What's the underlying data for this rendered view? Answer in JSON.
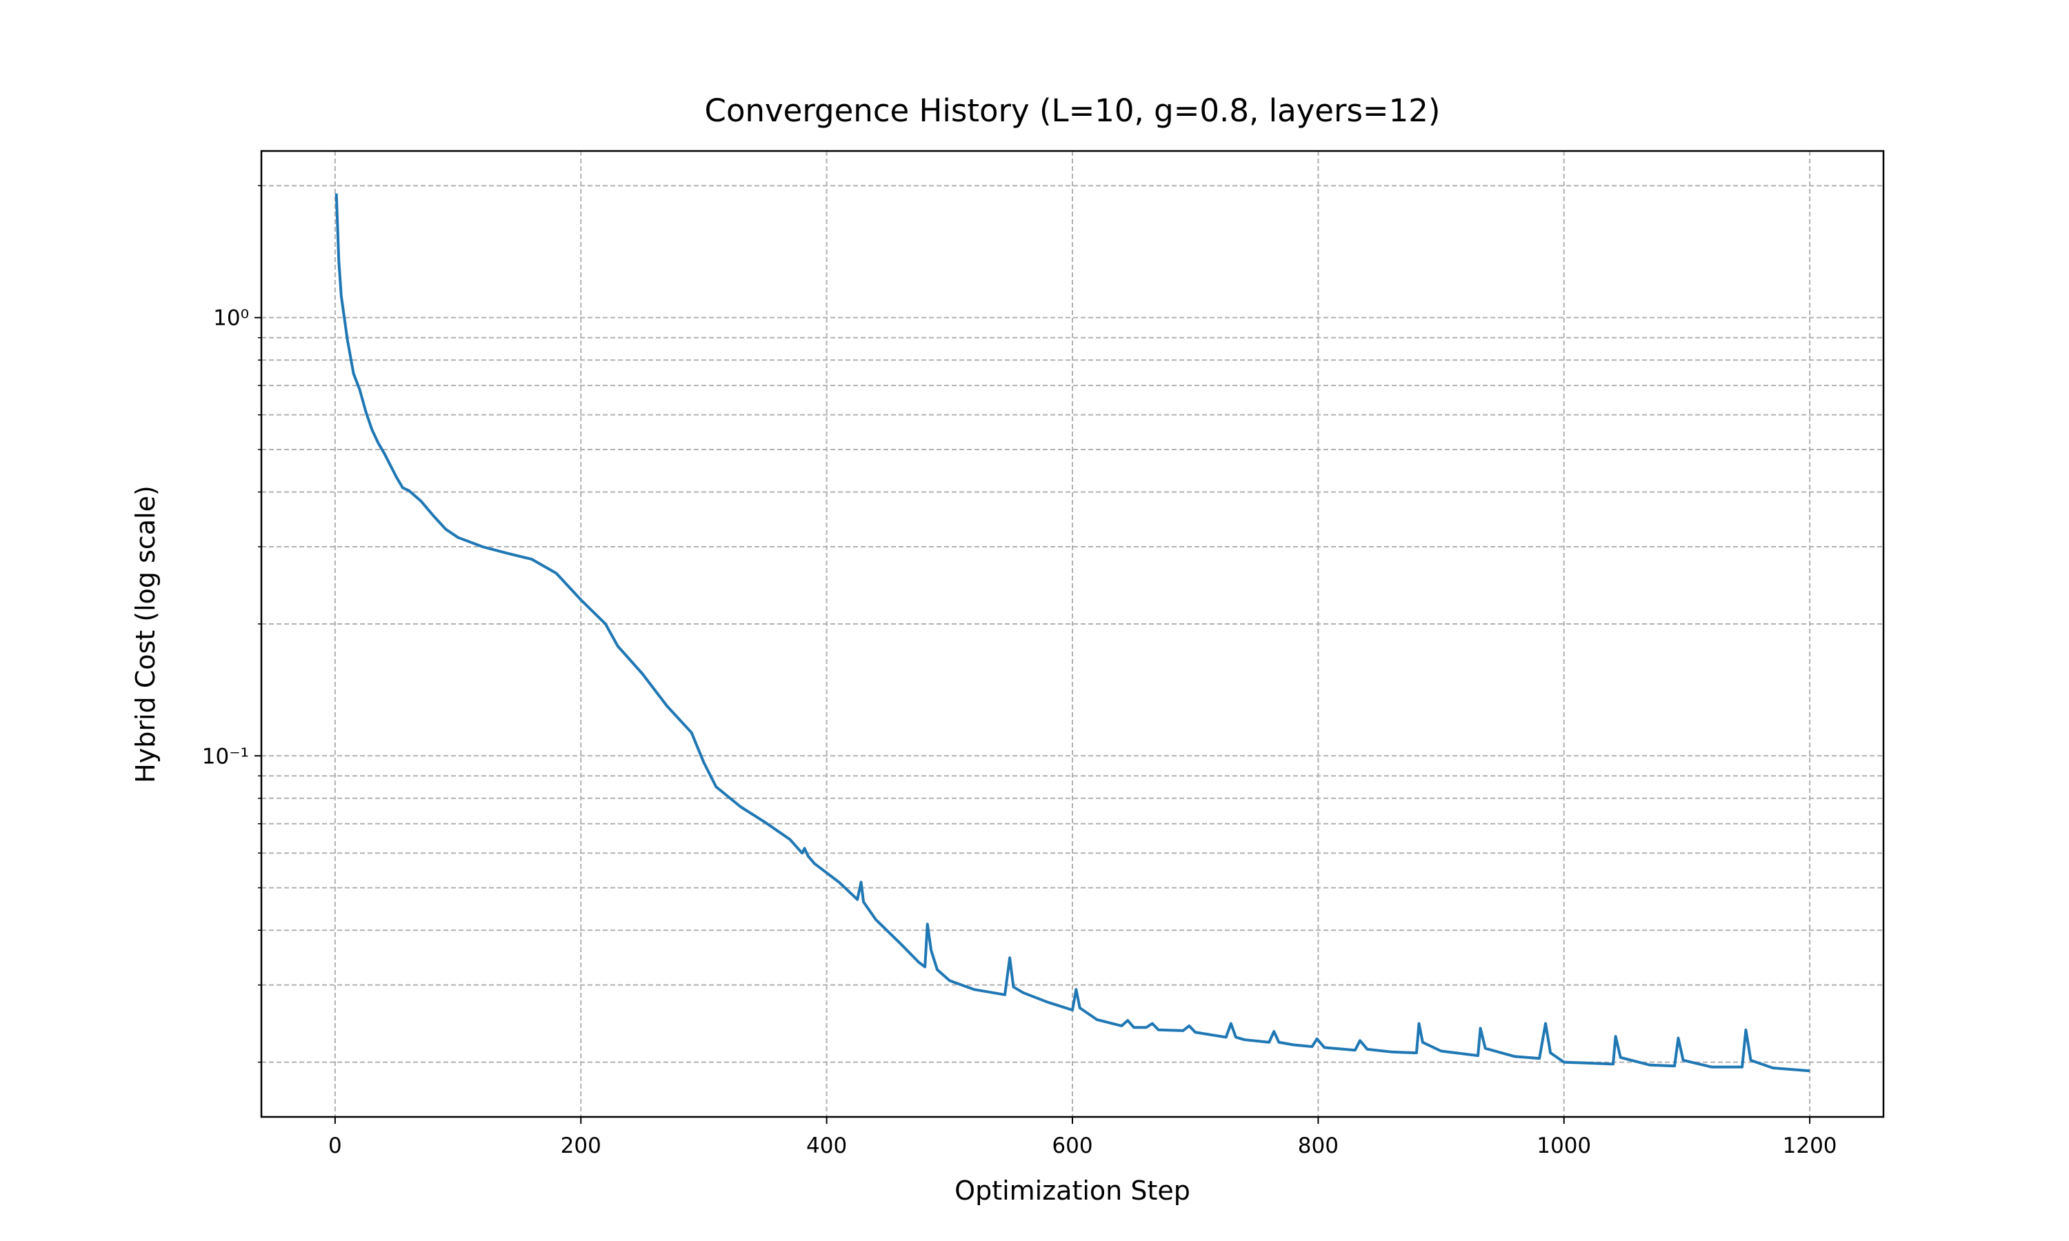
{
  "chart_data": {
    "type": "line",
    "title": "Convergence History (L=10, g=0.8, layers=12)",
    "x_label": "Optimization Step",
    "y_label": "Hybrid Cost (log scale)",
    "log_y": true,
    "grid": true,
    "color": "#1f77b4",
    "xlim": [
      -60,
      1260
    ],
    "xticks": [
      0,
      200,
      400,
      600,
      800,
      1000,
      1200
    ],
    "ylim": [
      0.015,
      2.4
    ],
    "yticks": [
      {
        "value": 0.1,
        "label": "10⁻¹"
      },
      {
        "value": 1,
        "label": "10⁰"
      }
    ],
    "yticks_minor": [
      0.02,
      0.03,
      0.04,
      0.05,
      0.06,
      0.07,
      0.08,
      0.09,
      0.2,
      0.3,
      0.4,
      0.5,
      0.6,
      0.7,
      0.8,
      0.9,
      2
    ],
    "x": [
      1,
      3,
      5,
      10,
      15,
      20,
      25,
      30,
      35,
      40,
      50,
      55,
      60,
      70,
      80,
      90,
      100,
      120,
      140,
      160,
      180,
      200,
      220,
      230,
      250,
      270,
      290,
      300,
      310,
      330,
      350,
      370,
      380,
      382,
      385,
      390,
      410,
      425,
      428,
      430,
      440,
      460,
      475,
      480,
      482,
      485,
      490,
      500,
      520,
      545,
      549,
      552,
      560,
      580,
      600,
      603,
      606,
      620,
      640,
      645,
      650,
      660,
      665,
      670,
      690,
      695,
      700,
      725,
      729,
      733,
      740,
      760,
      764,
      768,
      780,
      795,
      799,
      805,
      830,
      834,
      840,
      860,
      880,
      882,
      885,
      900,
      930,
      932,
      936,
      960,
      980,
      985,
      989,
      1000,
      1040,
      1042,
      1046,
      1070,
      1090,
      1093,
      1097,
      1120,
      1145,
      1148,
      1152,
      1170,
      1200
    ],
    "values": [
      1.92,
      1.35,
      1.12,
      0.89,
      0.745,
      0.685,
      0.61,
      0.555,
      0.518,
      0.49,
      0.432,
      0.409,
      0.403,
      0.381,
      0.353,
      0.329,
      0.315,
      0.3,
      0.29,
      0.281,
      0.261,
      0.227,
      0.2,
      0.178,
      0.154,
      0.13,
      0.113,
      0.0966,
      0.085,
      0.0765,
      0.0705,
      0.0645,
      0.06,
      0.0615,
      0.059,
      0.0568,
      0.0515,
      0.047,
      0.0515,
      0.0464,
      0.0423,
      0.0373,
      0.0338,
      0.033,
      0.0413,
      0.036,
      0.0325,
      0.0307,
      0.0293,
      0.0285,
      0.0346,
      0.0297,
      0.0288,
      0.0274,
      0.0263,
      0.0293,
      0.0266,
      0.025,
      0.0242,
      0.0249,
      0.024,
      0.024,
      0.0245,
      0.0237,
      0.0236,
      0.0242,
      0.0234,
      0.0228,
      0.0245,
      0.0228,
      0.0225,
      0.0222,
      0.0235,
      0.0222,
      0.0219,
      0.0217,
      0.0226,
      0.0216,
      0.0213,
      0.0224,
      0.0214,
      0.0211,
      0.021,
      0.0245,
      0.0222,
      0.0212,
      0.0207,
      0.0239,
      0.0215,
      0.0206,
      0.0204,
      0.0245,
      0.021,
      0.02,
      0.0198,
      0.0229,
      0.0205,
      0.0197,
      0.0196,
      0.0227,
      0.0202,
      0.0195,
      0.0195,
      0.0237,
      0.0202,
      0.0194,
      0.0191
    ]
  }
}
